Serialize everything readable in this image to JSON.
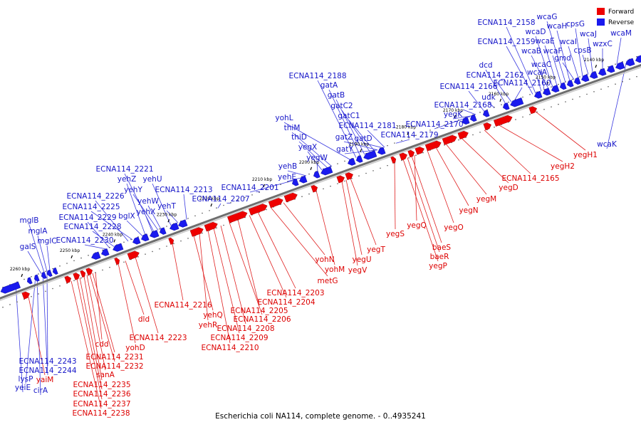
{
  "caption": "Escherichia coli NA114, complete genome. - 0..4935241",
  "legend": {
    "forward": {
      "label": "Forward",
      "color": "#ee0000"
    },
    "reverse": {
      "label": "Reverse",
      "color": "#1a1aee"
    }
  },
  "colors": {
    "forward": "#ee0000",
    "reverse": "#1a1aee",
    "forward_label": "#dd0000",
    "reverse_label": "#1515c8",
    "backbone": "#777777"
  },
  "ticks": [
    "2260 kbp",
    "2250 kbp",
    "2240 kbp",
    "2230 kbp",
    "2220 kbp",
    "2210 kbp",
    "2200 kbp",
    "2190 kbp",
    "2180 kbp",
    "2170 kbp",
    "2160 kbp",
    "2150 kbp",
    "2140 kbp"
  ],
  "reverse_labels": [
    "yeiE",
    "cirA",
    "lysP",
    "ECNA114_2244",
    "ECNA114_2243",
    "galS",
    "mglC",
    "mglA",
    "mglB",
    "ECNA114_2230",
    "ECNA114_2228",
    "ECNA114_2229",
    "ECNA114_2225",
    "ECNA114_2226",
    "bglX",
    "yehX",
    "yehW",
    "yehY",
    "yehZ",
    "ECNA114_2221",
    "yehU",
    "yehT",
    "ECNA114_2213",
    "ECNA114_2207",
    "ECNA114_2201",
    "yehE",
    "yehB",
    "yegW",
    "yegX",
    "thiD",
    "thiM",
    "yohL",
    "ECNA114_2188",
    "gatA",
    "gatB",
    "gatC2",
    "gatC1",
    "gatZ",
    "gatY",
    "gatD",
    "ECNA114_2181",
    "ECNA114_2179",
    "ECNA114_2170",
    "yegK",
    "ECNA114_2168",
    "ECNA114_2166",
    "udk",
    "dcd",
    "ECNA114_2162",
    "ECNA114_2160",
    "ECNA114_2159",
    "ECNA114_2158",
    "wcaA",
    "wcaC",
    "wcaB",
    "wcaD",
    "wcaE",
    "wcaF",
    "wcaG",
    "wcaH",
    "gmd",
    "wcaI",
    "cpsG",
    "cpsB",
    "wcaJ",
    "wzxC",
    "wcaM",
    "wcaK"
  ],
  "forward_labels": [
    "yaiM",
    "ECNA114_2238",
    "ECNA114_2237",
    "ECNA114_2236",
    "ECNA114_2235",
    "sanA",
    "ECNA114_2232",
    "ECNA114_2231",
    "cdd",
    "yohD",
    "dld",
    "ECNA114_2223",
    "ECNA114_2216",
    "yehQ",
    "yehR",
    "ECNA114_2210",
    "ECNA114_2209",
    "ECNA114_2208",
    "ECNA114_2206",
    "ECNA114_2205",
    "ECNA114_2204",
    "ECNA114_2203",
    "metG",
    "yohN",
    "yohM",
    "yegV",
    "yegU",
    "yegT",
    "yegS",
    "yegP",
    "baeR",
    "baeS",
    "yegQ",
    "yegR",
    "yegO",
    "yegN",
    "yegM",
    "yegD",
    "ECNA114_2165",
    "yegH2",
    "yegH1"
  ]
}
